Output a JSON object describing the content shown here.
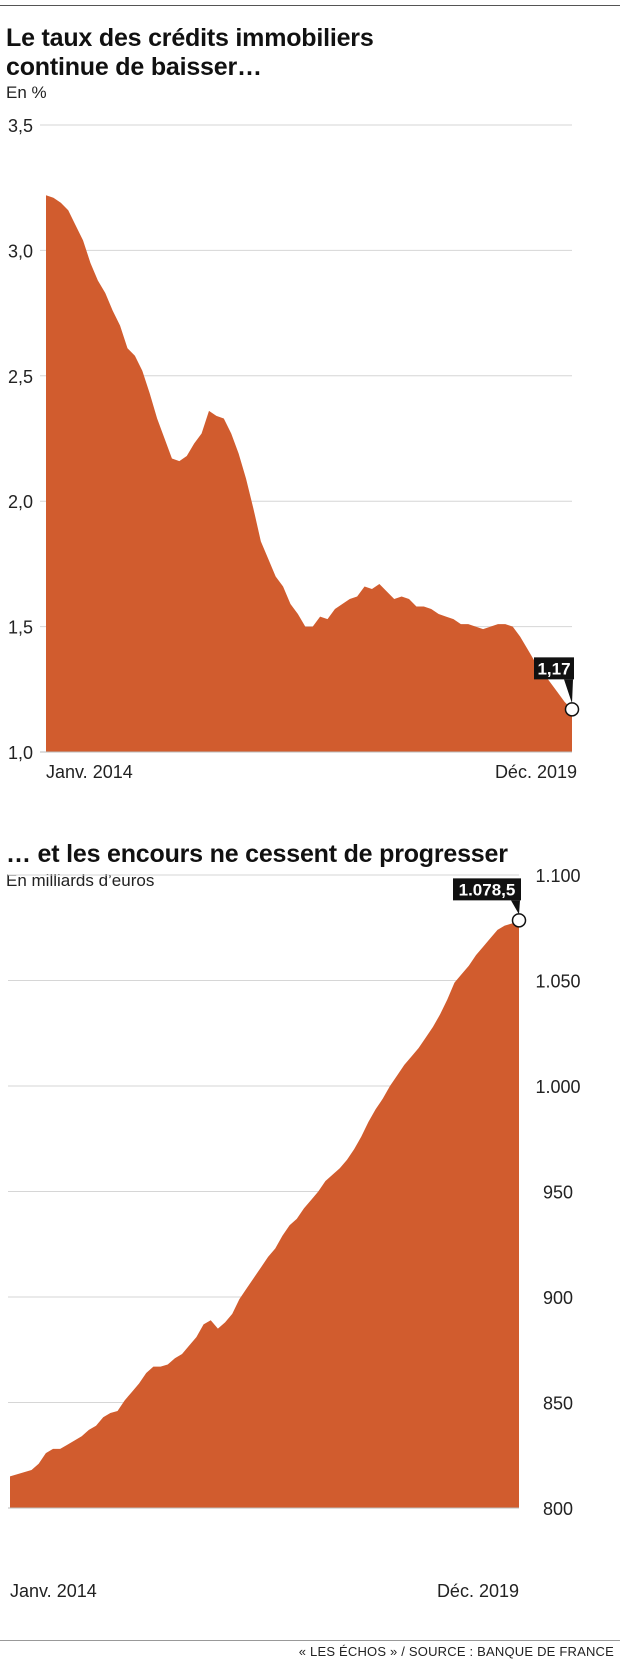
{
  "chart_data": [
    {
      "type": "area",
      "title": "Le taux des crédits immobiliers continue de baisser…",
      "subtitle": "En %",
      "ylim": [
        1.0,
        3.5
      ],
      "yticks": [
        "3,5",
        "3,0",
        "2,5",
        "2,0",
        "1,5",
        "1,0"
      ],
      "ytick_values": [
        3.5,
        3.0,
        2.5,
        2.0,
        1.5,
        1.0
      ],
      "x_start_label": "Janv. 2014",
      "x_end_label": "Déc. 2019",
      "x_range": [
        "2014-01",
        "2019-12"
      ],
      "grid": true,
      "color": "#d15c2e",
      "callout": "1,17",
      "values": [
        3.22,
        3.21,
        3.19,
        3.16,
        3.1,
        3.04,
        2.95,
        2.88,
        2.83,
        2.76,
        2.7,
        2.61,
        2.58,
        2.52,
        2.43,
        2.33,
        2.25,
        2.17,
        2.16,
        2.18,
        2.23,
        2.27,
        2.36,
        2.34,
        2.33,
        2.27,
        2.19,
        2.09,
        1.97,
        1.84,
        1.77,
        1.7,
        1.66,
        1.59,
        1.55,
        1.5,
        1.5,
        1.54,
        1.53,
        1.57,
        1.59,
        1.61,
        1.62,
        1.66,
        1.65,
        1.67,
        1.64,
        1.61,
        1.62,
        1.61,
        1.58,
        1.58,
        1.57,
        1.55,
        1.54,
        1.53,
        1.51,
        1.51,
        1.5,
        1.49,
        1.5,
        1.51,
        1.51,
        1.5,
        1.46,
        1.41,
        1.36,
        1.32,
        1.28,
        1.24,
        1.2,
        1.17
      ]
    },
    {
      "type": "area",
      "title": "… et les encours ne cessent de progresser",
      "subtitle": "En milliards d’euros",
      "ylim": [
        800,
        1100
      ],
      "yticks": [
        "1.100",
        "1.050",
        "1.000",
        "950",
        "900",
        "850",
        "800"
      ],
      "ytick_values": [
        1100,
        1050,
        1000,
        950,
        900,
        850,
        800
      ],
      "x_start_label": "Janv. 2014",
      "x_end_label": "Déc. 2019",
      "x_range": [
        "2014-01",
        "2019-12"
      ],
      "grid": true,
      "color": "#d15c2e",
      "callout": "1.078,5",
      "values": [
        815,
        816,
        817,
        818,
        821,
        826,
        828,
        828,
        830,
        832,
        834,
        837,
        839,
        843,
        845,
        846,
        851,
        855,
        859,
        864,
        867,
        867,
        868,
        871,
        873,
        877,
        881,
        887,
        889,
        885,
        888,
        892,
        899,
        904,
        909,
        914,
        919,
        923,
        929,
        934,
        937,
        942,
        946,
        950,
        955,
        958,
        961,
        965,
        970,
        976,
        983,
        989,
        994,
        1000,
        1005,
        1010,
        1014,
        1018,
        1023,
        1028,
        1034,
        1041,
        1049,
        1053,
        1057,
        1062,
        1066,
        1070,
        1074,
        1076,
        1077,
        1078.5
      ]
    }
  ],
  "source": "« LES ÉCHOS » / SOURCE : BANQUE DE FRANCE"
}
